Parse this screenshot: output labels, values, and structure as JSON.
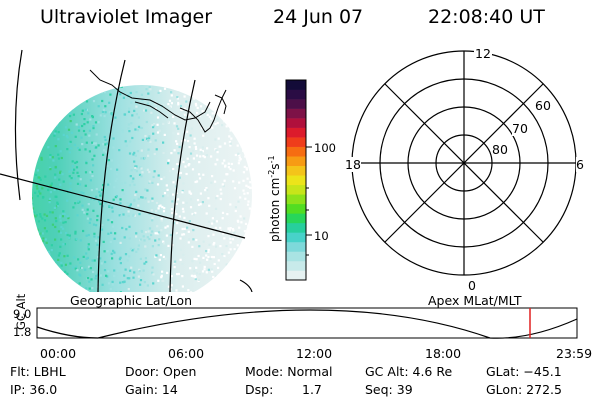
{
  "header": {
    "instrument": "Ultraviolet Imager",
    "date": "24 Jun 07",
    "time": "22:08:40 UT"
  },
  "colorbar": {
    "unit_label": "photon cm",
    "unit_exp1": "-2",
    "unit_s": "s",
    "unit_exp2": "-1",
    "ticks": [
      "100",
      "10"
    ],
    "colors": [
      "#e6f2f2",
      "#c8eaea",
      "#a9e3e3",
      "#7ed9da",
      "#48d2c9",
      "#27cf9d",
      "#28d65a",
      "#52dd22",
      "#8de21b",
      "#c7e51a",
      "#ece41a",
      "#f4c41a",
      "#f79b14",
      "#f66d12",
      "#ef3d1b",
      "#dc1b2c",
      "#b0103c",
      "#7d1247",
      "#4c0f48",
      "#2a0c44",
      "#130b38"
    ]
  },
  "polar": {
    "labels_top": "12",
    "labels_left": "18",
    "labels_right": "6",
    "labels_bottom": "0",
    "ring_labels": [
      "60",
      "70",
      "80"
    ]
  },
  "map_labels": {
    "left": "Geographic Lat/Lon",
    "right": "Apex MLat/MLT"
  },
  "altitude_plot": {
    "ylabel": "GC Alt",
    "ytick_top": "9.0",
    "ytick_bottom": "1.8",
    "xticks": [
      "00:00",
      "06:00",
      "12:00",
      "18:00",
      "23:59"
    ],
    "marker_color": "#e02020"
  },
  "footer": {
    "flt": "Flt: LBHL",
    "ip": "IP: 36.0",
    "door": "Door: Open",
    "gain": "Gain: 14",
    "mode": "Mode: Normal",
    "dsp_label": "Dsp:",
    "dsp_value": "1.7",
    "gcalt": "GC Alt: 4.6 Re",
    "seq": "Seq: 39",
    "glat": "GLat: −45.1",
    "glon": "GLon: 272.5"
  }
}
